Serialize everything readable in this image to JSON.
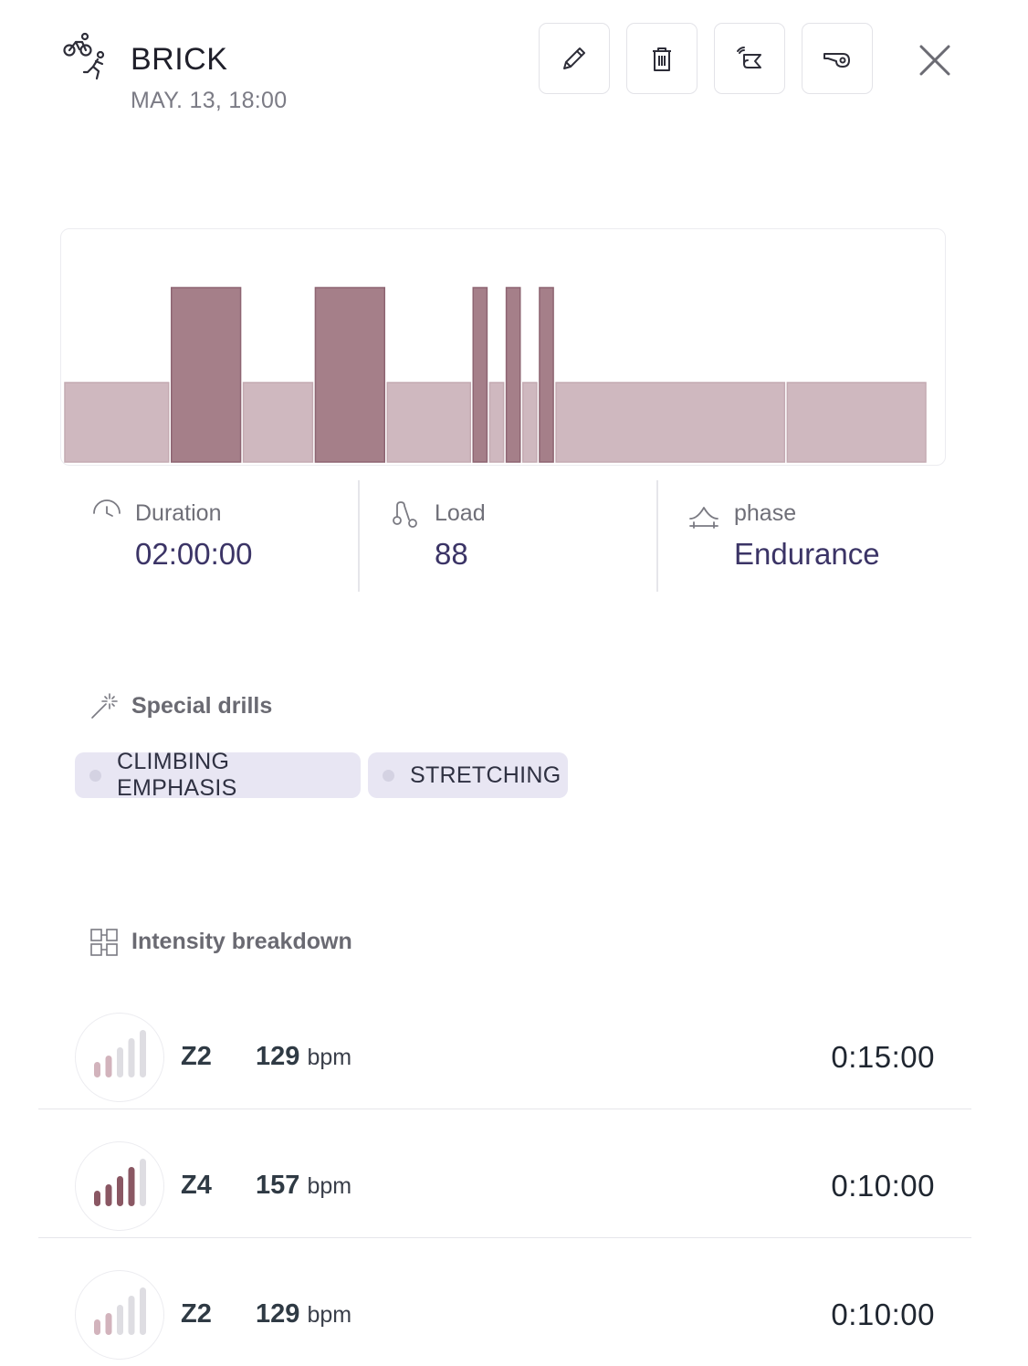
{
  "header": {
    "title": "BRICK",
    "subtitle": "MAY. 13, 18:00",
    "sport_icon": "bike-run-icon",
    "actions": [
      {
        "name": "edit-button",
        "icon": "pencil-icon"
      },
      {
        "name": "delete-button",
        "icon": "trash-icon"
      },
      {
        "name": "share-button",
        "icon": "scroll-wifi-icon"
      },
      {
        "name": "whistle-button",
        "icon": "whistle-icon"
      }
    ],
    "close_icon": "close-icon"
  },
  "chart_data": {
    "type": "bar",
    "description_units": "segment duration in minutes, zone level",
    "segments": [
      {
        "zone": 2,
        "minutes": 15
      },
      {
        "zone": 4,
        "minutes": 10
      },
      {
        "zone": 2,
        "minutes": 10
      },
      {
        "zone": 4,
        "minutes": 10
      },
      {
        "zone": 2,
        "minutes": 12
      },
      {
        "zone": 4,
        "minutes": 2
      },
      {
        "zone": 2,
        "minutes": 2
      },
      {
        "zone": 4,
        "minutes": 2
      },
      {
        "zone": 2,
        "minutes": 2
      },
      {
        "zone": 4,
        "minutes": 2
      },
      {
        "zone": 2,
        "minutes": 33
      },
      {
        "zone": 2,
        "minutes": 20
      }
    ],
    "colors": {
      "low": "#cfb8bf",
      "high": "#a57f89",
      "low_border": "#c4aab2",
      "high_border": "#8e6572"
    }
  },
  "stats": {
    "duration": {
      "label": "Duration",
      "value": "02:00:00",
      "icon": "clock-icon"
    },
    "load": {
      "label": "Load",
      "value": "88",
      "icon": "load-icon"
    },
    "phase": {
      "label": "phase",
      "value": "Endurance",
      "icon": "mountain-icon"
    }
  },
  "drills": {
    "title": "Special drills",
    "icon": "magic-wand-icon",
    "items": [
      "CLIMBING EMPHASIS",
      "STRETCHING"
    ]
  },
  "intensity": {
    "title": "Intensity breakdown",
    "icon": "grid-icon",
    "unit": "bpm",
    "rows": [
      {
        "zone": "Z2",
        "level": 2,
        "bpm": "129",
        "time": "0:15:00"
      },
      {
        "zone": "Z4",
        "level": 4,
        "bpm": "157",
        "time": "0:10:00"
      },
      {
        "zone": "Z2",
        "level": 2,
        "bpm": "129",
        "time": "0:10:00"
      }
    ]
  }
}
